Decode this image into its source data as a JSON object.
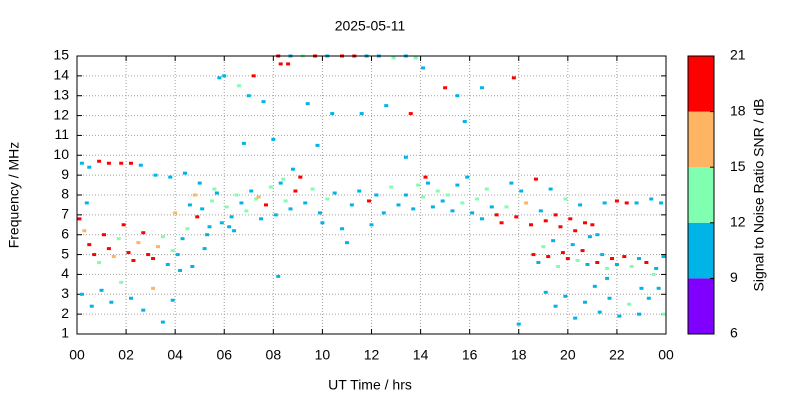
{
  "chart_data": {
    "type": "scatter",
    "title": "2025-05-11",
    "xlabel": "UT Time / hrs",
    "ylabel": "Frequency / MHz",
    "xlim": [
      0,
      24
    ],
    "xticks": [
      {
        "value": 0,
        "label": "00"
      },
      {
        "value": 2,
        "label": "02"
      },
      {
        "value": 4,
        "label": "04"
      },
      {
        "value": 6,
        "label": "06"
      },
      {
        "value": 8,
        "label": "08"
      },
      10,
      12,
      14,
      16,
      18,
      20,
      22,
      {
        "value": 24,
        "label": "00"
      }
    ],
    "ylim": [
      1,
      15
    ],
    "yticks": [
      1,
      2,
      3,
      4,
      5,
      6,
      7,
      8,
      9,
      10,
      11,
      12,
      13,
      14,
      15
    ],
    "grid": true,
    "colorbar": {
      "label": "Signal to Noise Ratio SNR / dB",
      "ticks": [
        6,
        9,
        12,
        15,
        18,
        21
      ],
      "colors": [
        "#8000ff",
        "#00b4e8",
        "#80ffb0",
        "#ffb464",
        "#ff0000"
      ]
    },
    "x": [
      0.1,
      0.3,
      0.5,
      0.7,
      0.9,
      1.1,
      1.3,
      1.5,
      1.7,
      1.9,
      2.1,
      2.3,
      2.5,
      2.7,
      2.9,
      3.1,
      3.3,
      3.5,
      3.7,
      3.9,
      0.2,
      0.5,
      0.9,
      1.3,
      1.8,
      2.2,
      2.6,
      3.2,
      3.8,
      0.4,
      0.2,
      0.6,
      1.0,
      1.4,
      1.8,
      2.2,
      2.7,
      3.1,
      3.5,
      3.9,
      4.1,
      4.3,
      4.5,
      4.7,
      4.9,
      5.1,
      5.3,
      5.5,
      5.7,
      5.9,
      4.4,
      5.0,
      5.8,
      4.0,
      4.6,
      5.2,
      4.2,
      5.6,
      4.8,
      5.4,
      6.1,
      6.3,
      6.5,
      6.7,
      6.9,
      7.1,
      7.3,
      7.5,
      7.7,
      7.9,
      8.1,
      8.3,
      8.5,
      8.7,
      8.9,
      6.4,
      7.0,
      6.8,
      7.2,
      8.3,
      8.6,
      8.8,
      8.0,
      6.6,
      7.6,
      8.2,
      6.2,
      7.4,
      8.4,
      6.0,
      9.1,
      9.3,
      9.6,
      9.9,
      10.2,
      10.5,
      10.8,
      11.2,
      11.5,
      11.9,
      12.2,
      12.5,
      12.8,
      13.1,
      13.4,
      13.7,
      13.9,
      10.0,
      11.0,
      12.0,
      8.2,
      8.7,
      9.2,
      9.7,
      10.2,
      10.8,
      11.3,
      11.8,
      12.3,
      12.9,
      13.4,
      13.8,
      9.4,
      9.8,
      10.4,
      11.6,
      12.6,
      13.6,
      13.4,
      14.1,
      14.1,
      14.3,
      14.5,
      14.7,
      14.9,
      15.1,
      15.3,
      15.5,
      15.7,
      15.9,
      16.1,
      16.3,
      16.5,
      16.7,
      16.9,
      14.2,
      15.0,
      15.5,
      15.8,
      16.5,
      17.1,
      17.3,
      17.5,
      17.7,
      17.9,
      18.1,
      18.3,
      18.5,
      18.7,
      18.9,
      19.1,
      19.3,
      19.5,
      19.7,
      19.9,
      20.1,
      20.3,
      20.5,
      20.7,
      20.9,
      18.6,
      18.8,
      19.0,
      19.2,
      19.4,
      19.6,
      19.8,
      20.0,
      20.2,
      20.4,
      20.6,
      20.8,
      19.1,
      19.5,
      19.9,
      20.3,
      20.7,
      21.1,
      17.8,
      18.0,
      21.2,
      21.4,
      21.6,
      21.8,
      22.0,
      22.3,
      22.6,
      22.9,
      23.2,
      23.6,
      21.5,
      22.0,
      22.4,
      22.8,
      23.4,
      23.8,
      21.3,
      21.7,
      22.1,
      22.5,
      22.9,
      23.3,
      23.7,
      23.9,
      21.0,
      21.2,
      21.6,
      23.0,
      23.5,
      23.9
    ],
    "values": [
      6.8,
      6.2,
      5.5,
      5.0,
      4.6,
      6.0,
      5.3,
      4.9,
      5.8,
      6.5,
      5.1,
      4.7,
      5.6,
      6.1,
      5.0,
      4.8,
      5.4,
      5.9,
      4.5,
      5.2,
      9.6,
      9.4,
      9.7,
      9.6,
      9.6,
      9.6,
      9.5,
      9.0,
      8.9,
      7.6,
      3.0,
      2.4,
      3.2,
      2.6,
      3.6,
      2.8,
      2.2,
      3.3,
      1.6,
      2.7,
      5.0,
      5.8,
      6.3,
      4.4,
      6.9,
      7.3,
      6.0,
      7.7,
      8.1,
      6.6,
      9.1,
      8.6,
      13.9,
      7.1,
      7.5,
      5.3,
      4.2,
      8.3,
      8.0,
      6.4,
      7.4,
      6.9,
      8.0,
      7.6,
      7.2,
      8.2,
      7.8,
      6.8,
      7.5,
      8.4,
      7.0,
      8.6,
      7.7,
      7.3,
      8.2,
      6.2,
      13.0,
      10.6,
      14.0,
      14.6,
      14.6,
      9.3,
      10.8,
      13.5,
      12.7,
      3.9,
      6.4,
      7.9,
      8.8,
      14.0,
      8.9,
      7.6,
      8.3,
      7.1,
      7.8,
      8.1,
      6.3,
      7.5,
      8.2,
      7.7,
      8.0,
      7.1,
      8.4,
      7.5,
      8.0,
      7.3,
      8.5,
      6.6,
      5.6,
      6.5,
      15,
      15,
      15,
      15,
      15,
      15,
      15,
      15,
      15,
      14.9,
      15,
      14.9,
      12.6,
      10.5,
      12.1,
      12.1,
      12.5,
      12.1,
      9.9,
      14.4,
      7.9,
      8.6,
      7.4,
      8.2,
      7.7,
      8.0,
      7.2,
      8.5,
      7.6,
      8.9,
      7.1,
      7.8,
      6.8,
      8.3,
      7.4,
      8.9,
      13.4,
      13.0,
      11.7,
      13.4,
      7.0,
      6.6,
      7.4,
      8.6,
      6.9,
      8.2,
      7.6,
      6.5,
      8.8,
      7.2,
      6.7,
      8.3,
      7.0,
      6.4,
      7.8,
      6.8,
      6.2,
      7.5,
      6.6,
      5.9,
      5.0,
      4.6,
      5.4,
      4.9,
      5.7,
      4.4,
      5.1,
      4.8,
      5.5,
      4.7,
      5.2,
      4.5,
      3.1,
      2.4,
      2.9,
      1.8,
      2.6,
      3.4,
      13.9,
      1.5,
      4.6,
      5.0,
      4.3,
      4.8,
      4.5,
      4.9,
      4.4,
      4.8,
      4.6,
      4.3,
      7.6,
      7.7,
      7.6,
      7.6,
      7.8,
      7.6,
      2.1,
      2.8,
      1.9,
      2.5,
      2.0,
      2.8,
      3.3,
      2.0,
      6.5,
      6.0,
      3.8,
      3.3,
      4.0,
      4.9
    ],
    "snr": [
      19,
      17,
      19,
      20,
      14,
      18,
      19,
      16,
      13,
      19,
      20,
      19,
      15,
      18,
      19,
      20,
      17,
      13,
      11,
      12,
      11,
      10,
      19,
      18,
      19,
      19,
      11,
      11,
      10,
      10,
      10,
      11,
      10,
      11,
      14,
      10,
      11,
      16,
      10,
      10,
      10,
      11,
      12,
      10,
      19,
      11,
      10,
      13,
      11,
      10,
      11,
      10,
      10,
      17,
      10,
      10,
      11,
      12,
      16,
      11,
      12,
      10,
      14,
      11,
      12,
      10,
      13,
      11,
      18,
      12,
      10,
      11,
      12,
      10,
      19,
      10,
      10,
      11,
      19,
      18,
      19,
      10,
      11,
      12,
      10,
      11,
      11,
      15,
      13,
      10,
      19,
      11,
      13,
      10,
      12,
      11,
      10,
      10,
      11,
      18,
      11,
      10,
      13,
      11,
      10,
      11,
      12,
      10,
      11,
      10,
      19,
      11,
      12,
      19,
      11,
      18,
      19,
      10,
      11,
      13,
      11,
      12,
      10,
      10,
      11,
      10,
      10,
      19,
      10,
      11,
      12,
      10,
      11,
      14,
      11,
      13,
      10,
      11,
      12,
      10,
      11,
      14,
      10,
      12,
      11,
      19,
      19,
      10,
      11,
      10,
      19,
      18,
      12,
      10,
      19,
      11,
      16,
      20,
      19,
      11,
      19,
      10,
      18,
      19,
      13,
      20,
      19,
      11,
      18,
      11,
      19,
      10,
      12,
      20,
      11,
      13,
      19,
      18,
      11,
      12,
      19,
      10,
      10,
      11,
      10,
      11,
      10,
      11,
      19,
      10,
      19,
      11,
      12,
      19,
      10,
      18,
      12,
      11,
      19,
      10,
      10,
      19,
      18,
      11,
      10,
      11,
      10,
      11,
      10,
      12,
      10,
      11,
      10,
      13,
      19,
      11,
      10,
      11,
      14,
      10
    ]
  }
}
